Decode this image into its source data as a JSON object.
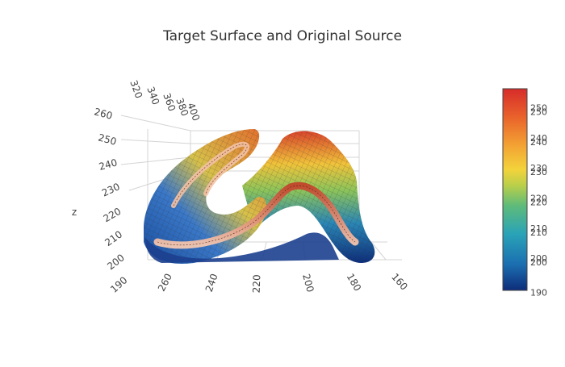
{
  "chart_data": {
    "type": "surface",
    "title": "Target Surface and Original Source",
    "axes": {
      "x": {
        "label": "",
        "ticks": [
          "260",
          "240",
          "220",
          "200",
          "180",
          "160"
        ]
      },
      "y": {
        "label": "",
        "ticks": [
          "320",
          "340",
          "360",
          "380",
          "400"
        ]
      },
      "z": {
        "label": "z",
        "ticks": [
          "190",
          "200",
          "210",
          "220",
          "230",
          "240",
          "250",
          "260"
        ]
      }
    },
    "colorbar": {
      "ticks": [
        "250",
        "250",
        "240",
        "240",
        "230",
        "230",
        "220",
        "220",
        "210",
        "210",
        "200",
        "200",
        "190"
      ],
      "range": [
        190,
        257
      ],
      "colorscale": [
        "#0d2d7a",
        "#1b6fb0",
        "#2aa3b7",
        "#5ebb7a",
        "#b9cf4a",
        "#f3d33b",
        "#f3a233",
        "#e9622b",
        "#d62c2a"
      ]
    },
    "traces": [
      {
        "name": "",
        "role": "target surface",
        "z_range": [
          190,
          257
        ]
      },
      {
        "name": "",
        "role": "original source",
        "z_range": [
          190,
          250
        ]
      }
    ]
  },
  "colors": {
    "grid": "#d4d4d4",
    "text": "#444444",
    "mesh": "#3a3a3a"
  }
}
